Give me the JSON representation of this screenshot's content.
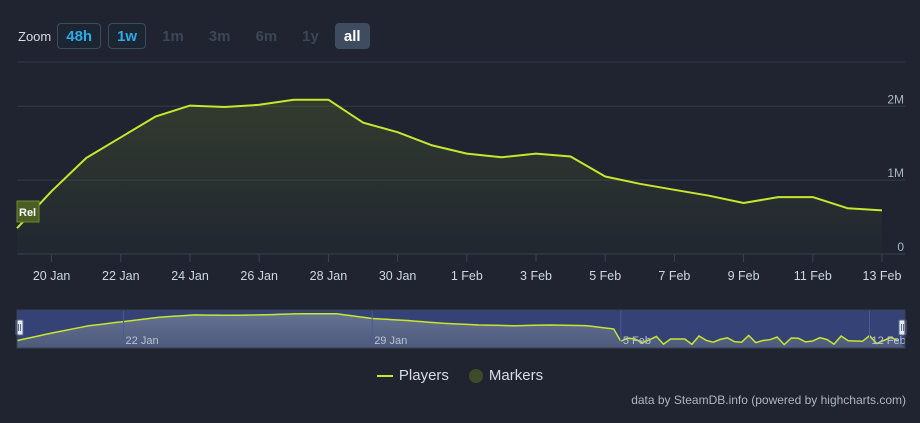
{
  "zoom": {
    "label": "Zoom",
    "buttons": [
      "48h",
      "1w",
      "1m",
      "3m",
      "6m",
      "1y",
      "all"
    ]
  },
  "chart_data": {
    "type": "line",
    "x_labels": [
      "20 Jan",
      "22 Jan",
      "24 Jan",
      "26 Jan",
      "28 Jan",
      "30 Jan",
      "1 Feb",
      "3 Feb",
      "5 Feb",
      "7 Feb",
      "9 Feb",
      "11 Feb",
      "13 Feb"
    ],
    "y_ticks": [
      "0",
      "1M",
      "2M"
    ],
    "ylim": [
      0,
      2600000
    ],
    "series": [
      {
        "name": "Players",
        "color": "#c8e62c",
        "x": [
          "19 Jan",
          "20 Jan",
          "21 Jan",
          "22 Jan",
          "23 Jan",
          "24 Jan",
          "25 Jan",
          "26 Jan",
          "27 Jan",
          "28 Jan",
          "29 Jan",
          "30 Jan",
          "31 Jan",
          "1 Feb",
          "2 Feb",
          "3 Feb",
          "4 Feb",
          "5 Feb",
          "6 Feb",
          "7 Feb",
          "8 Feb",
          "9 Feb",
          "10 Feb",
          "11 Feb",
          "12 Feb",
          "13 Feb"
        ],
        "values": [
          350000,
          850000,
          1300000,
          1580000,
          1860000,
          2010000,
          1990000,
          2020000,
          2090000,
          2090000,
          1780000,
          1650000,
          1470000,
          1360000,
          1310000,
          1360000,
          1320000,
          1050000,
          950000,
          870000,
          790000,
          690000,
          770000,
          770000,
          620000,
          590000
        ]
      }
    ],
    "markers": [
      {
        "label": "Rel"
      }
    ],
    "navigator": {
      "labels": [
        "22 Jan",
        "29 Jan",
        "5 Feb",
        "12 Feb"
      ]
    },
    "legend": [
      "Players",
      "Markers"
    ],
    "legend_position": "bottom-center",
    "grid": true
  },
  "credits": "data by SteamDB.info (powered by highcharts.com)",
  "colors": {
    "background": "#1f2430",
    "line": "#c8e62c",
    "navigator_mask": "#3b4a8a"
  }
}
